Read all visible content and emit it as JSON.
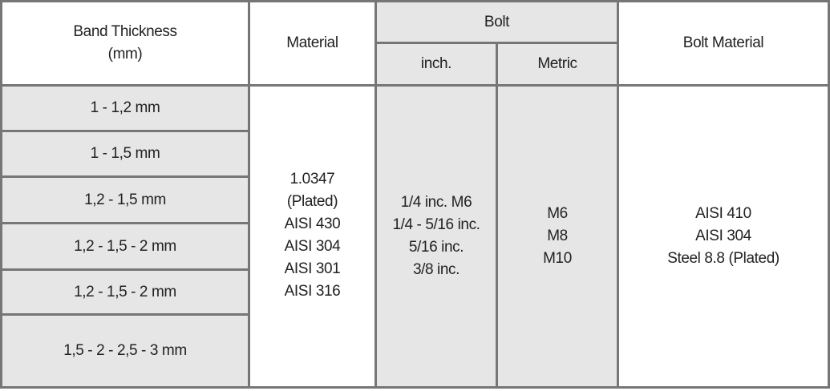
{
  "header": {
    "band_thickness": [
      "Band Thickness",
      "(mm)"
    ],
    "material": "Material",
    "bolt": "Bolt",
    "inch": "inch.",
    "metric": "Metric",
    "bolt_material": "Bolt Material"
  },
  "band_thickness_rows": [
    "1 - 1,2  mm",
    "1 - 1,5 mm",
    "1,2 - 1,5 mm",
    "1,2 - 1,5 - 2 mm",
    "1,2 - 1,5 - 2 mm",
    "1,5 -  2 - 2,5 - 3 mm"
  ],
  "material": [
    "1.0347",
    "(Plated)",
    "AISI 430",
    "AISI 304",
    "AISI 301",
    "AISI 316"
  ],
  "bolt_inch": [
    "1/4 inc.  M6",
    "1/4 - 5/16 inc.",
    "5/16 inc.",
    "3/8 inc."
  ],
  "bolt_metric": [
    "M6",
    "M8",
    "M10"
  ],
  "bolt_material": [
    "AISI 410",
    "AISI 304",
    "Steel 8.8 (Plated)"
  ],
  "colors": {
    "border": "#767676",
    "shaded_cell": "#e6e6e7",
    "text": "#222222"
  }
}
